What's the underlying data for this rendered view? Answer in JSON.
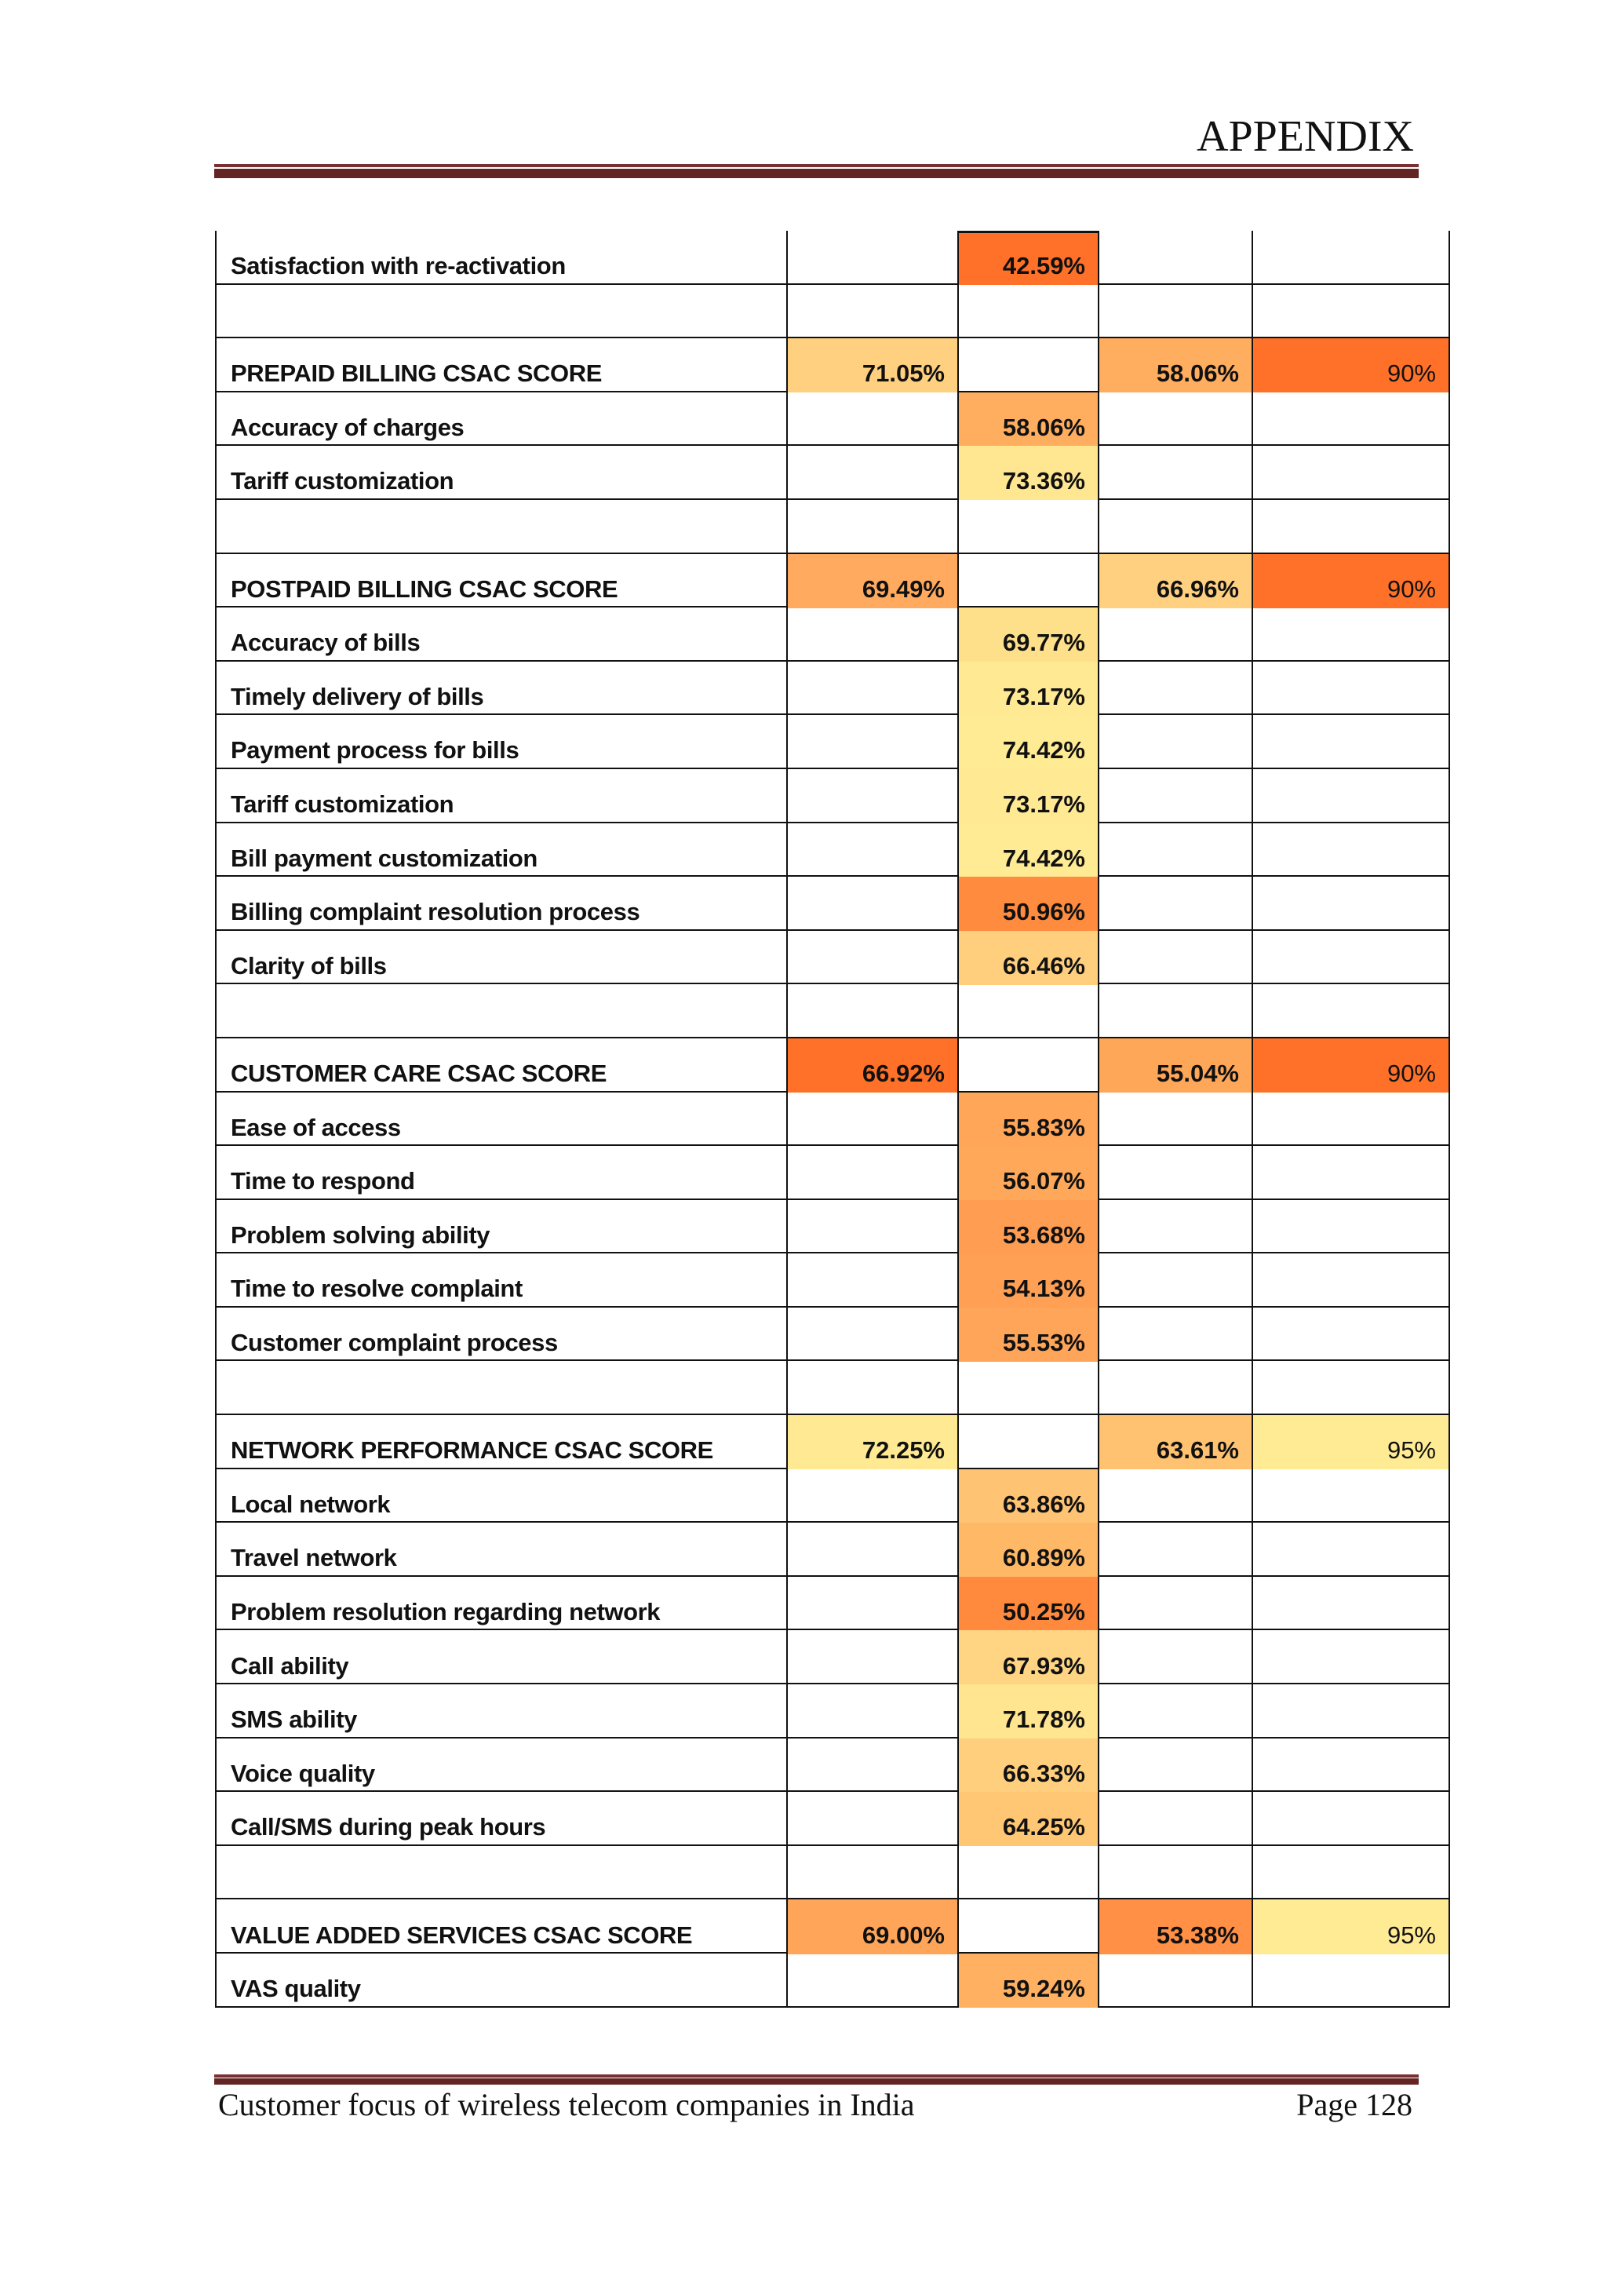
{
  "header": {
    "title": "APPENDIX"
  },
  "footer": {
    "left": "Customer focus of wireless telecom companies in India",
    "right": "Page 128"
  },
  "colors": {
    "dark_orange": "#FF7128",
    "pale_yellow": "#FFEB94"
  },
  "rows": [
    {
      "label": "Satisfaction with re-activation",
      "cells": [
        null,
        {
          "v": "42.59%",
          "c": "#FF7128"
        },
        null,
        null
      ]
    },
    {
      "label": "",
      "cells": [
        null,
        null,
        null,
        null
      ]
    },
    {
      "label": "PREPAID BILLING CSAC SCORE",
      "cells": [
        {
          "v": "71.05%",
          "c": "#FFD07F"
        },
        null,
        {
          "v": "58.06%",
          "c": "#FFAD5F"
        },
        {
          "v": "90%",
          "c": "#FF7128"
        }
      ]
    },
    {
      "label": "Accuracy of charges",
      "cells": [
        null,
        {
          "v": "58.06%",
          "c": "#FFAD5F"
        },
        null,
        null
      ]
    },
    {
      "label": "Tariff customization",
      "cells": [
        null,
        {
          "v": "73.36%",
          "c": "#FFE792"
        },
        null,
        null
      ]
    },
    {
      "label": "",
      "cells": [
        null,
        null,
        null,
        null
      ]
    },
    {
      "label": "POSTPAID BILLING CSAC SCORE",
      "cells": [
        {
          "v": "69.49%",
          "c": "#FFAA5E"
        },
        null,
        {
          "v": "66.96%",
          "c": "#FFD080"
        },
        {
          "v": "90%",
          "c": "#FF7128"
        }
      ]
    },
    {
      "label": "Accuracy of bills",
      "cells": [
        null,
        {
          "v": "69.77%",
          "c": "#FFE08A"
        },
        null,
        null
      ]
    },
    {
      "label": "Timely delivery of bills",
      "cells": [
        null,
        {
          "v": "73.17%",
          "c": "#FFEA93"
        },
        null,
        null
      ]
    },
    {
      "label": "Payment process for bills",
      "cells": [
        null,
        {
          "v": "74.42%",
          "c": "#FFEB94"
        },
        null,
        null
      ]
    },
    {
      "label": "Tariff customization",
      "cells": [
        null,
        {
          "v": "73.17%",
          "c": "#FFEA93"
        },
        null,
        null
      ]
    },
    {
      "label": "Bill payment customization",
      "cells": [
        null,
        {
          "v": "74.42%",
          "c": "#FFEB94"
        },
        null,
        null
      ]
    },
    {
      "label": "Billing complaint resolution process",
      "cells": [
        null,
        {
          "v": "50.96%",
          "c": "#FF8B3E"
        },
        null,
        null
      ]
    },
    {
      "label": "Clarity of bills",
      "cells": [
        null,
        {
          "v": "66.46%",
          "c": "#FFCF7E"
        },
        null,
        null
      ]
    },
    {
      "label": "",
      "cells": [
        null,
        null,
        null,
        null
      ]
    },
    {
      "label": "CUSTOMER CARE CSAC SCORE",
      "cells": [
        {
          "v": "66.92%",
          "c": "#FF7128"
        },
        null,
        {
          "v": "55.04%",
          "c": "#FFA758"
        },
        {
          "v": "90%",
          "c": "#FF7128"
        }
      ]
    },
    {
      "label": "Ease of access",
      "cells": [
        null,
        {
          "v": "55.83%",
          "c": "#FFA659"
        },
        null,
        null
      ]
    },
    {
      "label": "Time to respond",
      "cells": [
        null,
        {
          "v": "56.07%",
          "c": "#FFA85A"
        },
        null,
        null
      ]
    },
    {
      "label": "Problem solving ability",
      "cells": [
        null,
        {
          "v": "53.68%",
          "c": "#FF9D52"
        },
        null,
        null
      ]
    },
    {
      "label": "Time to resolve complaint",
      "cells": [
        null,
        {
          "v": "54.13%",
          "c": "#FFA055"
        },
        null,
        null
      ]
    },
    {
      "label": "Customer complaint process",
      "cells": [
        null,
        {
          "v": "55.53%",
          "c": "#FFA559"
        },
        null,
        null
      ]
    },
    {
      "label": "",
      "cells": [
        null,
        null,
        null,
        null
      ]
    },
    {
      "label": "NETWORK PERFORMANCE CSAC SCORE",
      "cells": [
        {
          "v": "72.25%",
          "c": "#FFEA93"
        },
        null,
        {
          "v": "63.61%",
          "c": "#FFC270"
        },
        {
          "v": "95%",
          "c": "#FFEB94"
        }
      ]
    },
    {
      "label": "Local network",
      "cells": [
        null,
        {
          "v": "63.86%",
          "c": "#FFC473"
        },
        null,
        null
      ]
    },
    {
      "label": "Travel network",
      "cells": [
        null,
        {
          "v": "60.89%",
          "c": "#FFB865"
        },
        null,
        null
      ]
    },
    {
      "label": "Problem resolution regarding network",
      "cells": [
        null,
        {
          "v": "50.25%",
          "c": "#FF8A3E"
        },
        null,
        null
      ]
    },
    {
      "label": "Call ability",
      "cells": [
        null,
        {
          "v": "67.93%",
          "c": "#FFD584"
        },
        null,
        null
      ]
    },
    {
      "label": "SMS ability",
      "cells": [
        null,
        {
          "v": "71.78%",
          "c": "#FFE58F"
        },
        null,
        null
      ]
    },
    {
      "label": "Voice quality",
      "cells": [
        null,
        {
          "v": "66.33%",
          "c": "#FFCF7E"
        },
        null,
        null
      ]
    },
    {
      "label": "Call/SMS during peak hours",
      "cells": [
        null,
        {
          "v": "64.25%",
          "c": "#FFC674"
        },
        null,
        null
      ]
    },
    {
      "label": "",
      "cells": [
        null,
        null,
        null,
        null
      ]
    },
    {
      "label": "VALUE ADDED SERVICES CSAC SCORE",
      "cells": [
        {
          "v": "69.00%",
          "c": "#FFA55A"
        },
        null,
        {
          "v": "53.38%",
          "c": "#FF9045"
        },
        {
          "v": "95%",
          "c": "#FFEB94"
        }
      ]
    },
    {
      "label": "VAS quality",
      "cells": [
        null,
        {
          "v": "59.24%",
          "c": "#FFB060"
        },
        null,
        null
      ]
    }
  ]
}
